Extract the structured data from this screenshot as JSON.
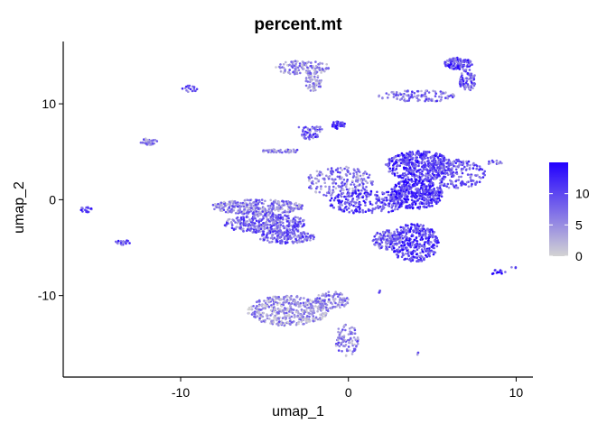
{
  "chart_data": {
    "type": "scatter",
    "title": "percent.mt",
    "xlabel": "umap_1",
    "ylabel": "umap_2",
    "xlim": [
      -17,
      11
    ],
    "ylim": [
      -18.5,
      16.5
    ],
    "x_ticks": [
      -10,
      0,
      10
    ],
    "x_tick_labels": [
      "-10",
      "0",
      "10"
    ],
    "y_ticks": [
      -10,
      0,
      10
    ],
    "y_tick_labels": [
      "-10",
      "0",
      "10"
    ],
    "grid": false,
    "legend": {
      "position": "right",
      "type": "colorbar",
      "min": 0,
      "max": 15,
      "ticks": [
        0,
        5,
        10
      ],
      "tick_labels": [
        "0",
        "5",
        "10"
      ],
      "color_low": "#d3d3d3",
      "color_high": "#2200ff"
    },
    "clusters": [
      {
        "x": [
          -4.4,
          -1.0
        ],
        "y": [
          13.0,
          14.5
        ],
        "n": 130,
        "level": 0.35
      },
      {
        "x": [
          -2.6,
          -1.6
        ],
        "y": [
          11.3,
          13.2
        ],
        "n": 60,
        "level": 0.3
      },
      {
        "x": [
          -9.9,
          -9.0
        ],
        "y": [
          11.2,
          11.9
        ],
        "n": 16,
        "level": 0.5
      },
      {
        "x": [
          5.6,
          7.4
        ],
        "y": [
          13.6,
          14.8
        ],
        "n": 110,
        "level": 0.65
      },
      {
        "x": [
          6.6,
          7.6
        ],
        "y": [
          11.3,
          13.6
        ],
        "n": 80,
        "level": 0.55
      },
      {
        "x": [
          1.8,
          6.6
        ],
        "y": [
          10.2,
          11.4
        ],
        "n": 110,
        "level": 0.45
      },
      {
        "x": [
          -3.2,
          -1.4
        ],
        "y": [
          7.0,
          7.7
        ],
        "n": 30,
        "level": 0.55
      },
      {
        "x": [
          -2.8,
          -1.8
        ],
        "y": [
          6.3,
          7.0
        ],
        "n": 30,
        "level": 0.6
      },
      {
        "x": [
          -1.0,
          -0.2
        ],
        "y": [
          7.4,
          8.2
        ],
        "n": 36,
        "level": 0.75
      },
      {
        "x": [
          -5.2,
          -2.8
        ],
        "y": [
          4.9,
          5.3
        ],
        "n": 50,
        "level": 0.4
      },
      {
        "x": [
          -12.4,
          -11.4
        ],
        "y": [
          5.7,
          6.4
        ],
        "n": 40,
        "level": 0.4
      },
      {
        "x": [
          -16.0,
          -15.2
        ],
        "y": [
          -1.3,
          -0.7
        ],
        "n": 16,
        "level": 0.6
      },
      {
        "x": [
          -13.9,
          -13.0
        ],
        "y": [
          -4.7,
          -4.2
        ],
        "n": 22,
        "level": 0.6
      },
      {
        "x": [
          -8.2,
          -2.6
        ],
        "y": [
          -1.5,
          0.0
        ],
        "n": 300,
        "level": 0.4
      },
      {
        "x": [
          -7.4,
          -2.4
        ],
        "y": [
          -3.5,
          -1.5
        ],
        "n": 320,
        "level": 0.5
      },
      {
        "x": [
          -5.4,
          -2.0
        ],
        "y": [
          -4.6,
          -3.2
        ],
        "n": 160,
        "level": 0.55
      },
      {
        "x": [
          -2.5,
          1.5
        ],
        "y": [
          0.2,
          3.5
        ],
        "n": 200,
        "level": 0.4
      },
      {
        "x": [
          -1.2,
          3.5
        ],
        "y": [
          -1.5,
          1.0
        ],
        "n": 250,
        "level": 0.65
      },
      {
        "x": [
          2.2,
          6.2
        ],
        "y": [
          2.0,
          5.1
        ],
        "n": 420,
        "level": 0.7
      },
      {
        "x": [
          4.6,
          8.2
        ],
        "y": [
          1.2,
          4.2
        ],
        "n": 200,
        "level": 0.55
      },
      {
        "x": [
          2.5,
          5.6
        ],
        "y": [
          -1.0,
          2.2
        ],
        "n": 380,
        "level": 0.75
      },
      {
        "x": [
          2.4,
          5.4
        ],
        "y": [
          -6.5,
          -2.5
        ],
        "n": 360,
        "level": 0.7
      },
      {
        "x": [
          1.4,
          3.2
        ],
        "y": [
          -5.2,
          -3.2
        ],
        "n": 110,
        "level": 0.5
      },
      {
        "x": [
          8.3,
          9.2
        ],
        "y": [
          3.6,
          4.1
        ],
        "n": 14,
        "level": 0.4
      },
      {
        "x": [
          8.4,
          9.4
        ],
        "y": [
          -7.8,
          -7.3
        ],
        "n": 12,
        "level": 0.8
      },
      {
        "x": [
          9.6,
          10.0
        ],
        "y": [
          -7.2,
          -6.9
        ],
        "n": 4,
        "level": 0.4
      },
      {
        "x": [
          -6.0,
          -1.2
        ],
        "y": [
          -13.2,
          -10.0
        ],
        "n": 420,
        "level": 0.3
      },
      {
        "x": [
          -2.0,
          0.0
        ],
        "y": [
          -11.5,
          -9.6
        ],
        "n": 110,
        "level": 0.4
      },
      {
        "x": [
          -0.8,
          0.6
        ],
        "y": [
          -16.3,
          -13.0
        ],
        "n": 90,
        "level": 0.4
      },
      {
        "x": [
          1.8,
          2.2
        ],
        "y": [
          -9.8,
          -9.4
        ],
        "n": 4,
        "level": 0.4
      },
      {
        "x": [
          4.0,
          4.2
        ],
        "y": [
          -16.2,
          -15.8
        ],
        "n": 3,
        "level": 0.4
      }
    ]
  }
}
